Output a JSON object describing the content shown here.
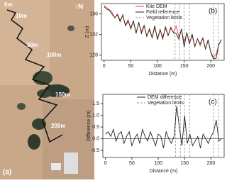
{
  "map": {
    "labels": [
      "0m",
      "10m",
      "50m",
      "100m",
      "150m",
      "200m"
    ],
    "north": "↑N",
    "panel": "(a)"
  },
  "chart_data": [
    {
      "type": "line",
      "panel": "(b)",
      "xlabel": "Distance (m)",
      "ylabel": "Z (m)",
      "x": [
        0,
        5,
        10,
        15,
        20,
        25,
        30,
        35,
        40,
        45,
        50,
        55,
        60,
        65,
        70,
        75,
        80,
        85,
        90,
        95,
        100,
        105,
        110,
        115,
        120,
        125,
        130,
        135,
        140,
        145,
        150,
        155,
        160,
        165,
        170,
        175,
        180,
        185,
        190,
        195,
        200,
        205,
        210,
        215,
        220
      ],
      "series": [
        {
          "name": "Kite DEM",
          "color": "#e8442a",
          "values": [
            137.6,
            137.2,
            136.8,
            136.3,
            135.2,
            136.0,
            134.8,
            135.6,
            133.8,
            134.9,
            133.0,
            134.6,
            132.4,
            134.2,
            132.6,
            133.8,
            131.6,
            133.2,
            131.4,
            133.4,
            131.2,
            133.0,
            131.0,
            133.6,
            131.8,
            133.2,
            132.4,
            133.6,
            131.6,
            132.8,
            130.6,
            132.2,
            130.4,
            131.8,
            129.6,
            131.2,
            129.8,
            131.4,
            129.2,
            130.8,
            128.6,
            127.6,
            128.2,
            130.0,
            131.0
          ]
        },
        {
          "name": "Field reference",
          "color": "#222222",
          "values": [
            137.4,
            136.9,
            136.7,
            135.9,
            135.3,
            135.8,
            134.5,
            135.8,
            133.7,
            134.6,
            133.3,
            134.6,
            132.2,
            134.4,
            132.2,
            133.7,
            131.7,
            132.9,
            131.4,
            133.7,
            131.0,
            132.9,
            131.4,
            133.3,
            131.8,
            133.4,
            132.3,
            132.2,
            131.1,
            133.1,
            129.6,
            132.4,
            130.2,
            132.1,
            129.7,
            131.1,
            130.2,
            131.2,
            129.2,
            131.0,
            128.5,
            127.3,
            127.4,
            130.1,
            131.0
          ]
        }
      ],
      "vertical_lines": {
        "name": "Vegetation limits",
        "color": "#999999",
        "x": [
          133,
          142,
          150,
          160,
          205,
          214
        ]
      },
      "xlim": [
        -5,
        225
      ],
      "xticks": [
        0,
        50,
        100,
        150,
        200
      ],
      "ylim": [
        127,
        138
      ],
      "yticks": [
        128,
        132,
        136
      ]
    },
    {
      "type": "line",
      "panel": "(c)",
      "xlabel": "Distance (m)",
      "ylabel": "Difference (m)",
      "x": [
        0,
        5,
        10,
        15,
        20,
        25,
        30,
        35,
        40,
        45,
        50,
        55,
        60,
        65,
        70,
        75,
        80,
        85,
        90,
        95,
        100,
        105,
        110,
        115,
        120,
        125,
        130,
        135,
        140,
        145,
        150,
        155,
        160,
        165,
        170,
        175,
        180,
        185,
        190,
        195,
        200,
        205,
        210,
        215,
        220
      ],
      "series": [
        {
          "name": "DEM difference",
          "color": "#222222",
          "values": [
            0.2,
            0.3,
            0.1,
            0.4,
            -0.1,
            0.2,
            0.3,
            -0.2,
            0.1,
            0.3,
            -0.3,
            0.0,
            0.2,
            -0.2,
            0.4,
            0.1,
            -0.1,
            0.3,
            0.0,
            -0.3,
            0.2,
            0.1,
            -0.4,
            0.3,
            0.0,
            -0.2,
            0.1,
            1.4,
            0.5,
            -0.3,
            1.0,
            -0.2,
            0.2,
            -0.3,
            -0.1,
            0.1,
            -0.4,
            0.2,
            0.0,
            -0.2,
            0.1,
            0.3,
            0.8,
            -0.1,
            0.0
          ]
        }
      ],
      "vertical_lines": {
        "name": "Vegetation limits",
        "color": "#999999",
        "x": [
          133,
          142,
          150,
          160,
          205,
          214
        ]
      },
      "reference_line": 0,
      "xlim": [
        -5,
        225
      ],
      "xticks": [
        0,
        50,
        100,
        150,
        200
      ],
      "ylim": [
        -0.8,
        1.9
      ],
      "yticks": [
        {
          "value": -0.5,
          "label": "-0.5"
        },
        {
          "value": 0,
          "label": "0.0"
        },
        0.5,
        {
          "value": 1,
          "label": "1.0"
        },
        1.5
      ]
    }
  ]
}
